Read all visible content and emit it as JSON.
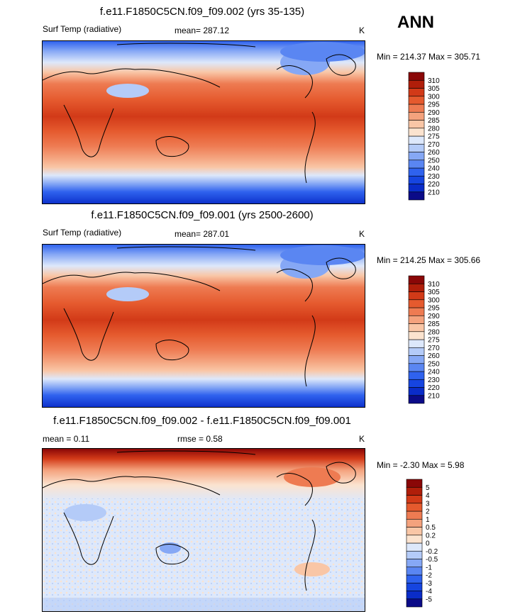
{
  "season": "ANN",
  "colors": {
    "temp_scale": [
      "#0b0b88",
      "#0a2cc8",
      "#1645e0",
      "#2f62ee",
      "#5a86f2",
      "#86a8f5",
      "#b4cbf8",
      "#dde8fb",
      "#fbe3cf",
      "#f9c6a6",
      "#f4a27d",
      "#ee7b52",
      "#e55a2e",
      "#d23a18",
      "#b01e0a",
      "#8a0707"
    ],
    "diff_scale": [
      "#0b0b88",
      "#0a2cc8",
      "#1645e0",
      "#2f62ee",
      "#5a86f2",
      "#86a8f5",
      "#b4cbf8",
      "#dde8fb",
      "#fbe3cf",
      "#f9c6a6",
      "#f4a27d",
      "#ee7b52",
      "#e55a2e",
      "#d23a18",
      "#b01e0a",
      "#8a0707"
    ]
  },
  "panels": [
    {
      "title": "f.e11.F1850C5CN.f09_f09.002 (yrs 35-135)",
      "left_label": "Surf Temp (radiative)",
      "center_label": "mean= 287.12",
      "right_label": "K",
      "minmax": "Min = 214.37 Max = 305.71"
    },
    {
      "title": "f.e11.F1850C5CN.f09_f09.001 (yrs 2500-2600)",
      "left_label": "Surf Temp (radiative)",
      "center_label": "mean= 287.01",
      "right_label": "K",
      "minmax": "Min = 214.25 Max = 305.66"
    },
    {
      "title": "f.e11.F1850C5CN.f09_f09.002 - f.e11.F1850C5CN.f09_f09.001",
      "left_label": "mean =   0.11",
      "center_label": "rmse =   0.58",
      "right_label": "K",
      "minmax": "Min =  -2.30 Max =   5.98"
    }
  ],
  "chart_data": [
    {
      "type": "heatmap",
      "title": "f.e11.F1850C5CN.f09_f09.002 (yrs 35-135)",
      "variable": "Surf Temp (radiative)",
      "units": "K",
      "mean": 287.12,
      "min": 214.37,
      "max": 305.71,
      "colorbar_levels": [
        "210",
        "220",
        "230",
        "240",
        "250",
        "260",
        "270",
        "275",
        "280",
        "285",
        "290",
        "295",
        "300",
        "305",
        "310"
      ]
    },
    {
      "type": "heatmap",
      "title": "f.e11.F1850C5CN.f09_f09.001 (yrs 2500-2600)",
      "variable": "Surf Temp (radiative)",
      "units": "K",
      "mean": 287.01,
      "min": 214.25,
      "max": 305.66,
      "colorbar_levels": [
        "210",
        "220",
        "230",
        "240",
        "250",
        "260",
        "270",
        "275",
        "280",
        "285",
        "290",
        "295",
        "300",
        "305",
        "310"
      ]
    },
    {
      "type": "heatmap",
      "title": "f.e11.F1850C5CN.f09_f09.002 - f.e11.F1850C5CN.f09_f09.001",
      "units": "K",
      "mean": 0.11,
      "rmse": 0.58,
      "min": -2.3,
      "max": 5.98,
      "colorbar_levels": [
        "-5",
        "-4",
        "-3",
        "-2",
        "-1",
        "-0.5",
        "-0.2",
        "0",
        "0.2",
        "0.5",
        "1",
        "2",
        "3",
        "4",
        "5"
      ]
    }
  ]
}
